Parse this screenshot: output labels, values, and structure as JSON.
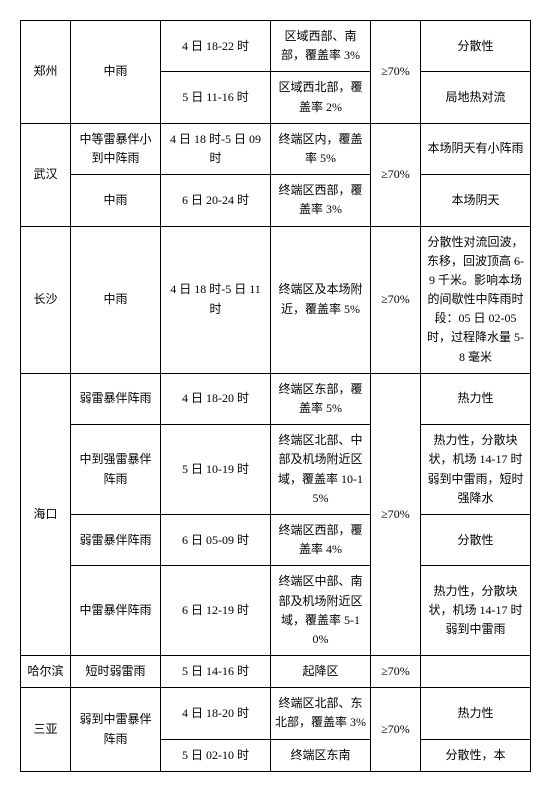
{
  "rows": [
    {
      "c1": "郑州",
      "c1r": 2,
      "c2": "中雨",
      "c2r": 2,
      "c3": "4 日 18-22 时",
      "c4": "区域西部、南部，覆盖率 3%",
      "c5": "≥70%",
      "c5r": 2,
      "c6": "分散性"
    },
    {
      "c3": "5 日 11-16 时",
      "c4": "区域西北部，覆盖率 2%",
      "c6": "局地热对流"
    },
    {
      "c1": "武汉",
      "c1r": 2,
      "c2": "中等雷暴伴小到中阵雨",
      "c3": "4 日 18 时-5 日 09 时",
      "c4": "终端区内，覆盖率 5%",
      "c5": "≥70%",
      "c5r": 2,
      "c6": "本场阴天有小阵雨"
    },
    {
      "c2": "中雨",
      "c3": "6 日 20-24 时",
      "c4": "终端区西部，覆盖率 3%",
      "c6": "本场阴天"
    },
    {
      "c1": "长沙",
      "c2": "中雨",
      "c3": "4 日 18 时-5 日 11 时",
      "c4": "终端区及本场附近，覆盖率 5%",
      "c5": "≥70%",
      "c6": "分散性对流回波，东移，回波顶高 6-9 千米。影响本场的间歇性中阵雨时段：05 日 02-05 时，过程降水量 5-8 毫米"
    },
    {
      "c1": "海口",
      "c1r": 4,
      "c2": "弱雷暴伴阵雨",
      "c3": "4 日 18-20 时",
      "c4": "终端区东部，覆盖率 5%",
      "c5": "≥70%",
      "c5r": 4,
      "c6": "热力性"
    },
    {
      "c2": "中到强雷暴伴阵雨",
      "c3": "5 日 10-19 时",
      "c4": "终端区北部、中部及机场附近区域，覆盖率 10-15%",
      "c6": "热力性，分散块状，机场 14-17 时弱到中雷雨，短时强降水"
    },
    {
      "c2": "弱雷暴伴阵雨",
      "c3": "6 日 05-09 时",
      "c4": "终端区西部，覆盖率 4%",
      "c6": "分散性"
    },
    {
      "c2": "中雷暴伴阵雨",
      "c3": "6 日 12-19 时",
      "c4": "终端区中部、南部及机场附近区域，覆盖率 5-10%",
      "c6": "热力性，分散块状，机场 14-17 时弱到中雷雨"
    },
    {
      "c1": "哈尔滨",
      "c2": "短时弱雷雨",
      "c3": "5 日 14-16 时",
      "c4": "起降区",
      "c5": "≥70%",
      "c6": ""
    },
    {
      "c1": "三亚",
      "c1r": 2,
      "c2": "弱到中雷暴伴阵雨",
      "c2r": 2,
      "c3": "4 日 18-20 时",
      "c4": "终端区北部、东北部，覆盖率 3%",
      "c5": "≥70%",
      "c5r": 2,
      "c6": "热力性"
    },
    {
      "c3": "5 日 02-10 时",
      "c4": "终端区东南",
      "c6": "分散性，本"
    }
  ],
  "cols": [
    "c1",
    "c2",
    "c3",
    "c4",
    "c5",
    "c6"
  ]
}
